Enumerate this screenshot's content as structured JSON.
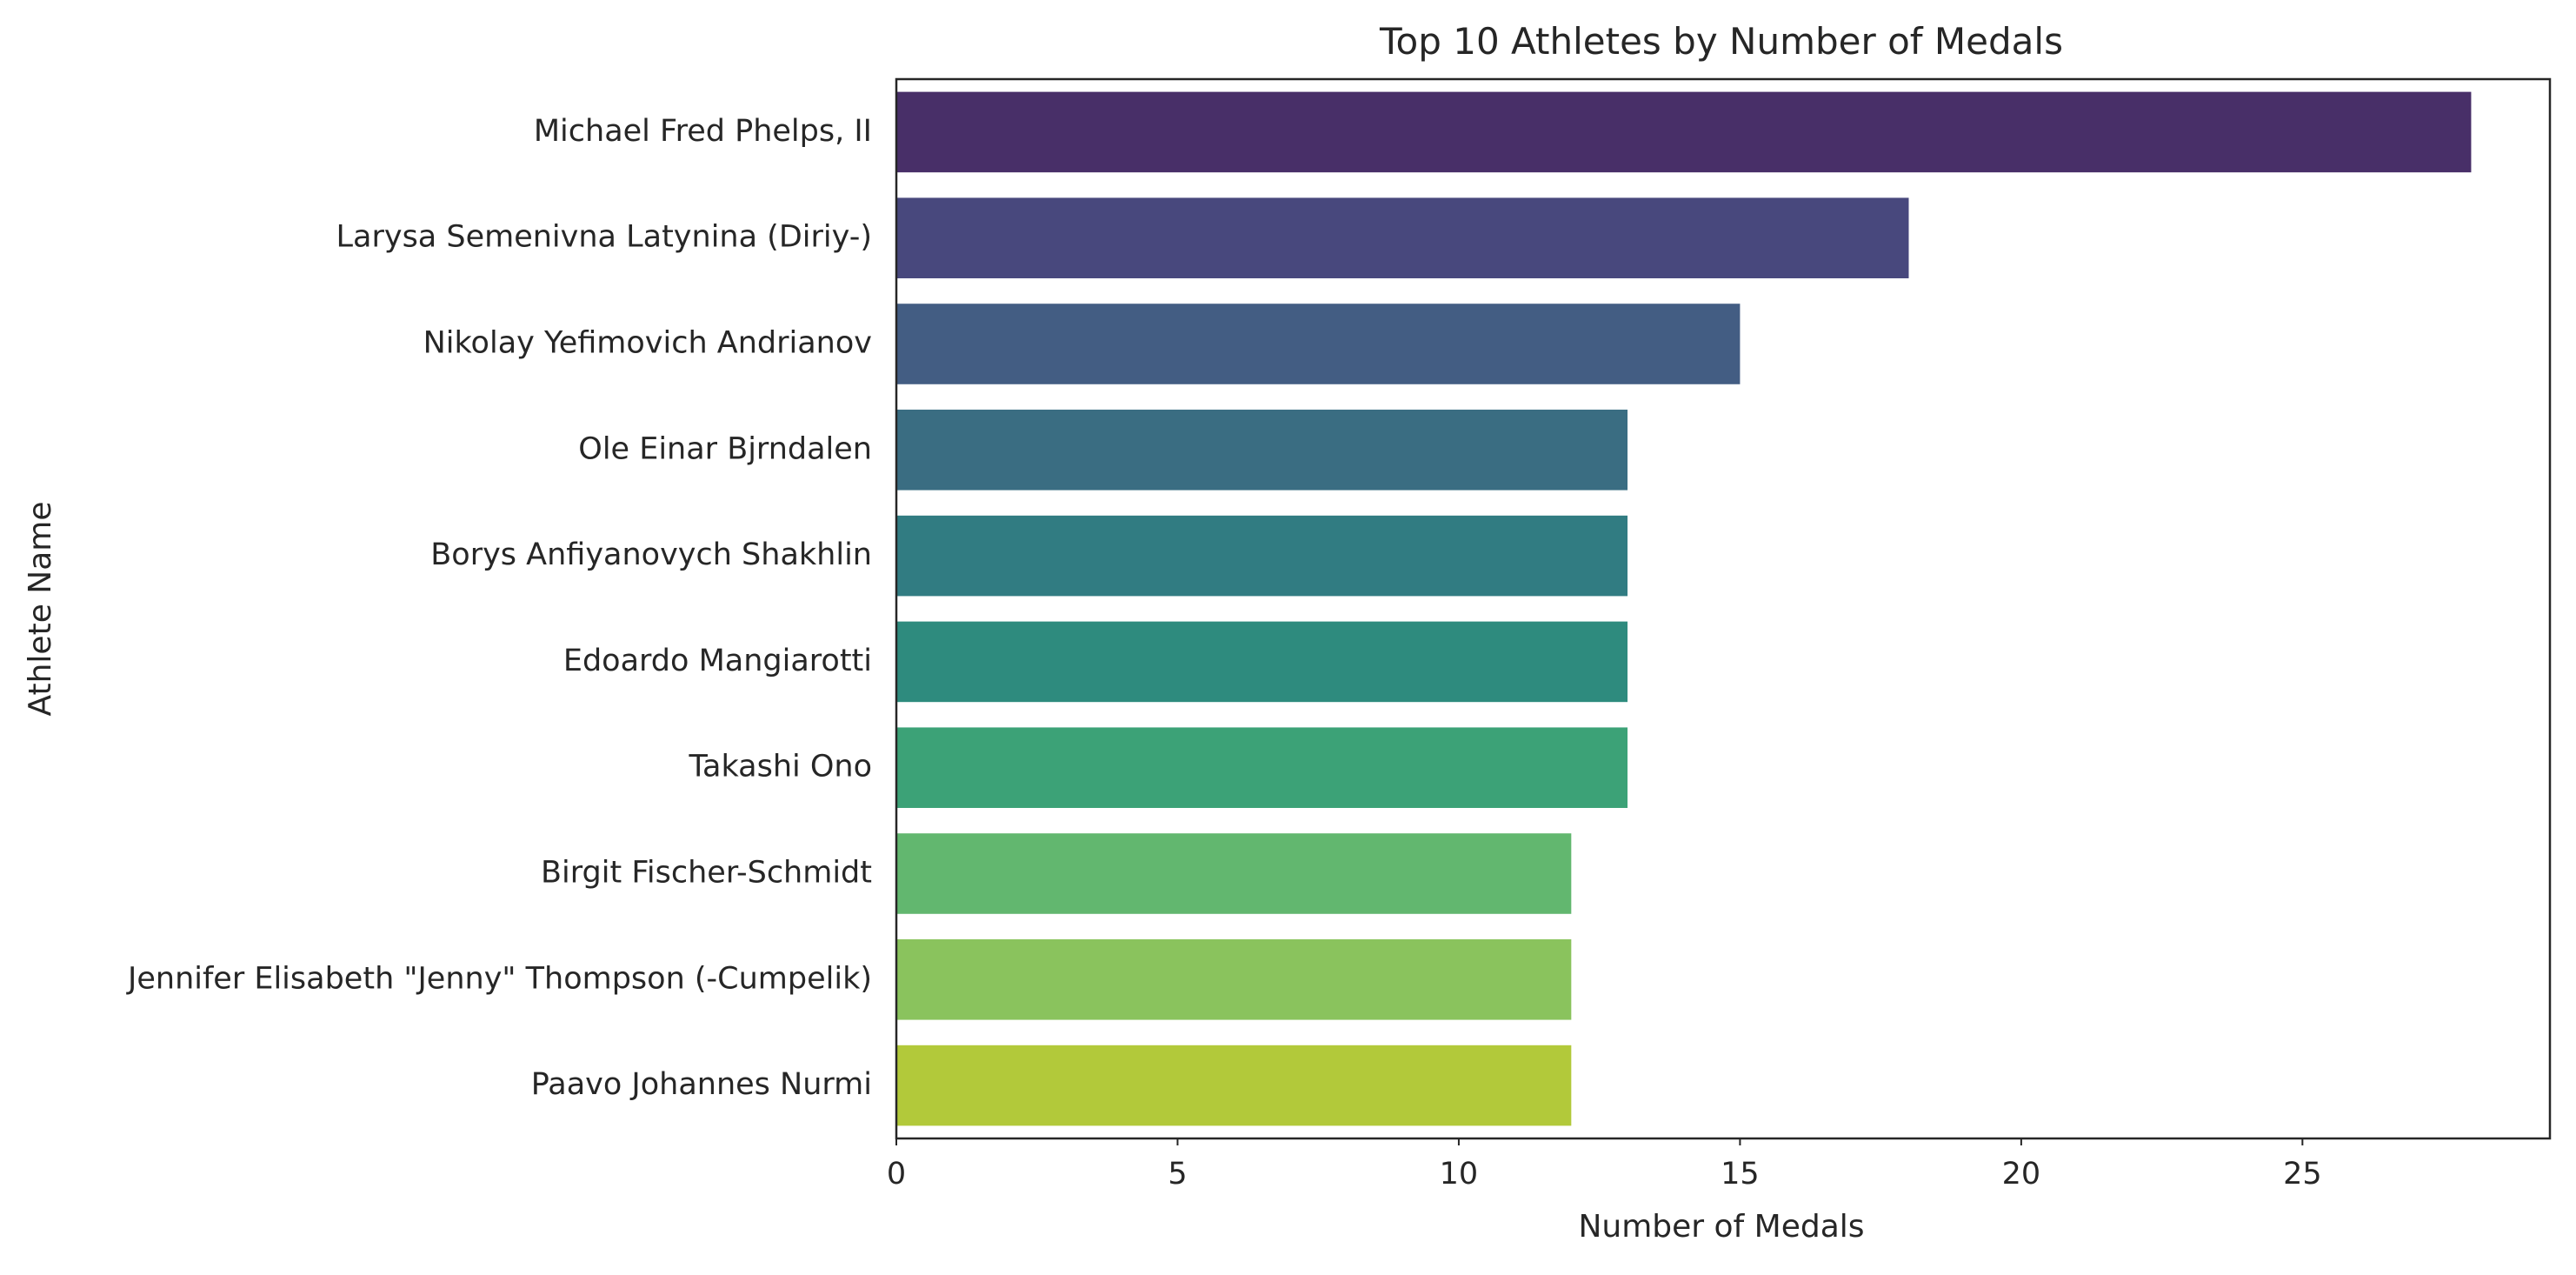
{
  "chart_data": {
    "type": "bar",
    "orientation": "horizontal",
    "title": "Top 10 Athletes by Number of Medals",
    "xlabel": "Number of Medals",
    "ylabel": "Athlete Name",
    "xlim": [
      0,
      29.4
    ],
    "xticks": [
      0,
      5,
      10,
      15,
      20,
      25
    ],
    "grid": false,
    "categories": [
      "Michael Fred Phelps, II",
      "Larysa Semenivna Latynina (Diriy-)",
      "Nikolay Yefimovich Andrianov",
      "Ole Einar Bjrndalen",
      "Borys Anfiyanovych Shakhlin",
      "Edoardo Mangiarotti",
      "Takashi Ono",
      "Birgit Fischer-Schmidt",
      "Jennifer Elisabeth \"Jenny\" Thompson (-Cumpelik)",
      "Paavo Johannes Nurmi"
    ],
    "values": [
      28,
      18,
      15,
      13,
      13,
      13,
      13,
      12,
      12,
      12
    ],
    "colors": [
      "#482f68",
      "#48487d",
      "#435d83",
      "#3a6d82",
      "#317c82",
      "#2e8b7e",
      "#3ca277",
      "#62b76f",
      "#8ac35d",
      "#b2c93a"
    ]
  }
}
